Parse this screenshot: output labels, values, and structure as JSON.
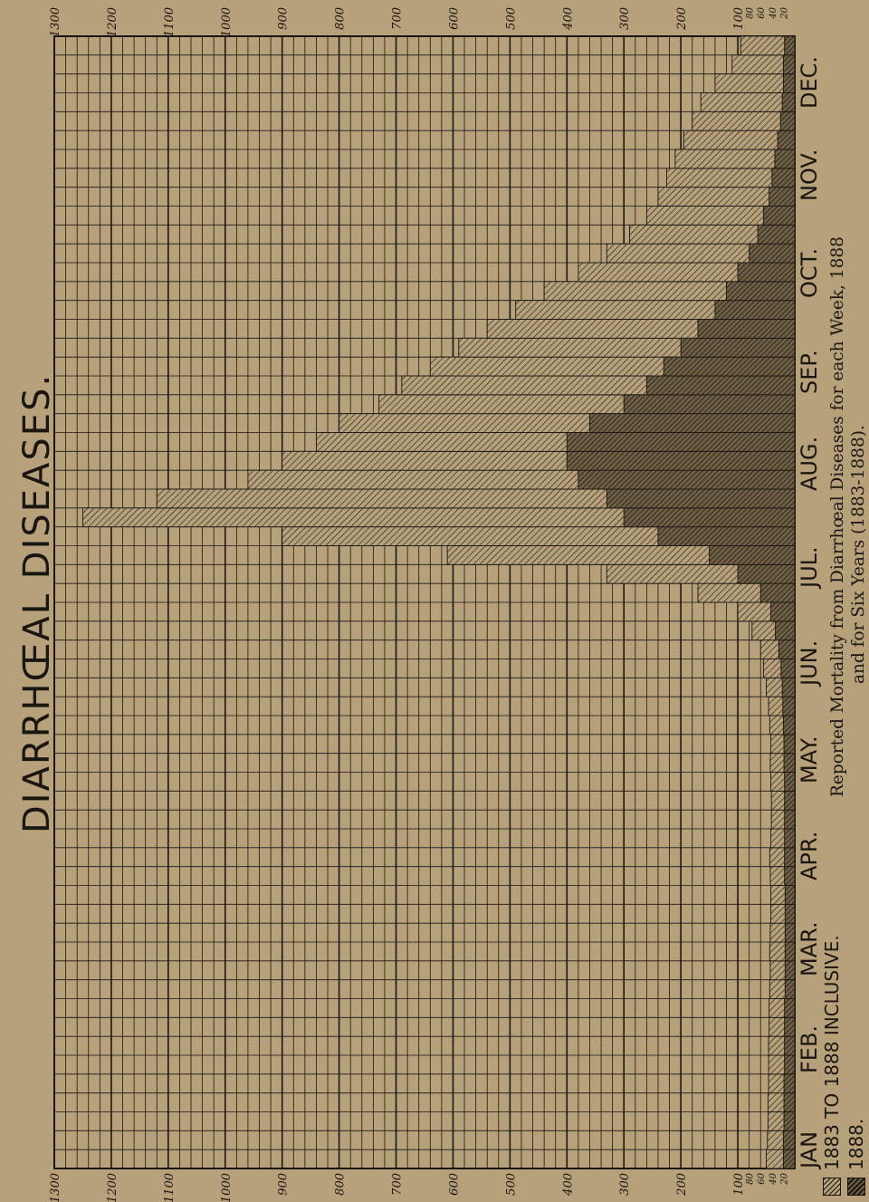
{
  "title": "DIARRHŒAL DISEASES.",
  "caption": {
    "line1": "Reported Mortality from Diarrhœal Diseases for each Week, 1888",
    "line2": "and for Six Years (1883-1888)."
  },
  "legend": [
    {
      "label": "1883 TO 1888 INCLUSIVE.",
      "pattern": "light-hatch"
    },
    {
      "label": "1888.",
      "pattern": "dark-hatch"
    }
  ],
  "months": [
    "JAN",
    "FEB.",
    "MAR.",
    "APR.",
    "MAY.",
    "JUN.",
    "JUL.",
    "AUG.",
    "SEP.",
    "OCT.",
    "NOV.",
    "DEC."
  ],
  "colors": {
    "background": "#b7a17a",
    "ink": "#1a1612",
    "dark_fill": "#6e5f45"
  },
  "chart_data": {
    "type": "bar",
    "orientation": "rotated",
    "x_unit": "week",
    "ylim": [
      0,
      1300
    ],
    "major_ticks": [
      "1300",
      "1200",
      "1100",
      "1000",
      "900",
      "800",
      "700",
      "600",
      "500",
      "400",
      "300",
      "200",
      "100"
    ],
    "minor_ticks": [
      "80",
      "60",
      "40",
      "20"
    ],
    "series": [
      {
        "name": "1883 TO 1888 INCLUSIVE.",
        "values": [
          50,
          48,
          47,
          47,
          46,
          46,
          46,
          45,
          45,
          44,
          43,
          44,
          43,
          42,
          42,
          43,
          44,
          42,
          41,
          41,
          42,
          43,
          42,
          44,
          46,
          50,
          55,
          60,
          75,
          100,
          170,
          330,
          610,
          900,
          1250,
          1120,
          960,
          900,
          840,
          800,
          730,
          690,
          640,
          590,
          540,
          490,
          440,
          380,
          330,
          290,
          260,
          240,
          225,
          210,
          195,
          180,
          165,
          140,
          110,
          95
        ]
      },
      {
        "name": "1888.",
        "values": [
          20,
          20,
          19,
          19,
          19,
          18,
          18,
          18,
          18,
          17,
          17,
          17,
          17,
          17,
          17,
          18,
          18,
          18,
          18,
          18,
          18,
          19,
          19,
          20,
          21,
          22,
          24,
          28,
          34,
          42,
          60,
          100,
          150,
          240,
          300,
          330,
          380,
          400,
          400,
          360,
          300,
          260,
          230,
          200,
          170,
          140,
          120,
          100,
          80,
          65,
          55,
          45,
          40,
          35,
          30,
          25,
          22,
          20,
          20,
          18
        ]
      }
    ]
  }
}
